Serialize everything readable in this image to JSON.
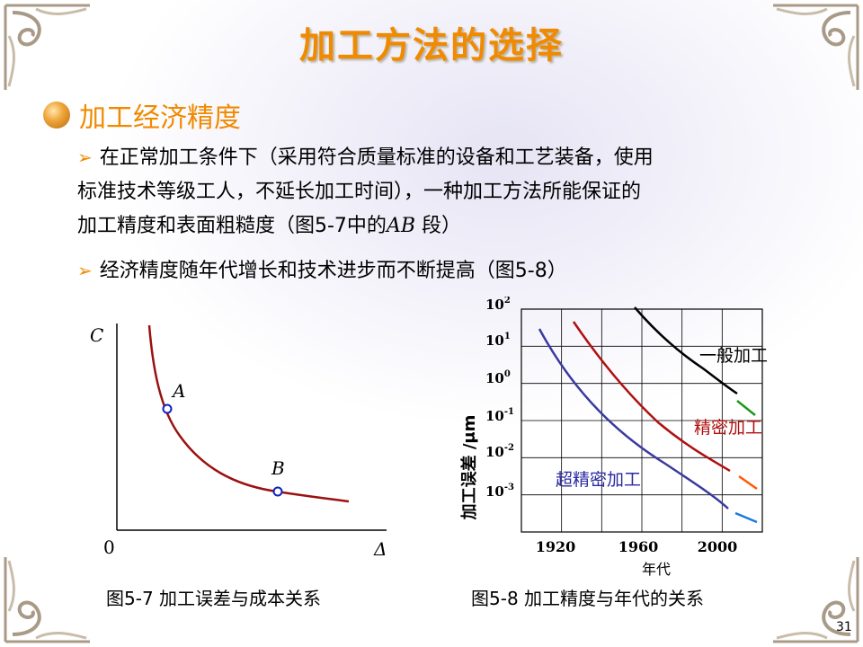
{
  "slide": {
    "title": "加工方法的选择",
    "section": "加工经济精度",
    "bullets": [
      {
        "line1": "在正常加工条件下（采用符合质量标准的设备和工艺装备，使用",
        "line2": "标准技术等级工人，不延长加工时间），一种加工方法所能保证的",
        "line3_pre": "加工精度和表面粗糙度（图5-7中的",
        "line3_it": "AB",
        "line3_post": "段）"
      },
      {
        "text": "经济精度随年代增长和技术进步而不断提高（图5-8）"
      }
    ],
    "page_number": "31"
  },
  "figure1": {
    "caption": "图5-7  加工误差与成本关系",
    "y_axis_label": "C",
    "x_axis_label": "Δ",
    "origin_label": "0",
    "point_a": "A",
    "point_b": "B",
    "curve_color": "#9b1010",
    "marker_color": "#1020c0"
  },
  "chart_data": {
    "type": "line",
    "caption": "图5-8  加工精度与年代的关系",
    "xlabel": "年代",
    "ylabel": "加工误差 /μm",
    "x_ticks": [
      "1920",
      "1960",
      "2000"
    ],
    "y_ticks": [
      {
        "base": "10",
        "exp": "2"
      },
      {
        "base": "10",
        "exp": "1"
      },
      {
        "base": "10",
        "exp": "0"
      },
      {
        "base": "10",
        "exp": "-1"
      },
      {
        "base": "10",
        "exp": "-2"
      },
      {
        "base": "10",
        "exp": "-3"
      }
    ],
    "y_scale": "log",
    "grid": true,
    "series": [
      {
        "name": "一般加工",
        "color": "#000000",
        "extension_color": "#1a9a1a"
      },
      {
        "name": "精密加工",
        "color": "#b01010",
        "extension_color": "#ff5a00"
      },
      {
        "name": "超精密加工",
        "color": "#3a3aa0",
        "extension_color": "#1a7ae0"
      }
    ]
  }
}
